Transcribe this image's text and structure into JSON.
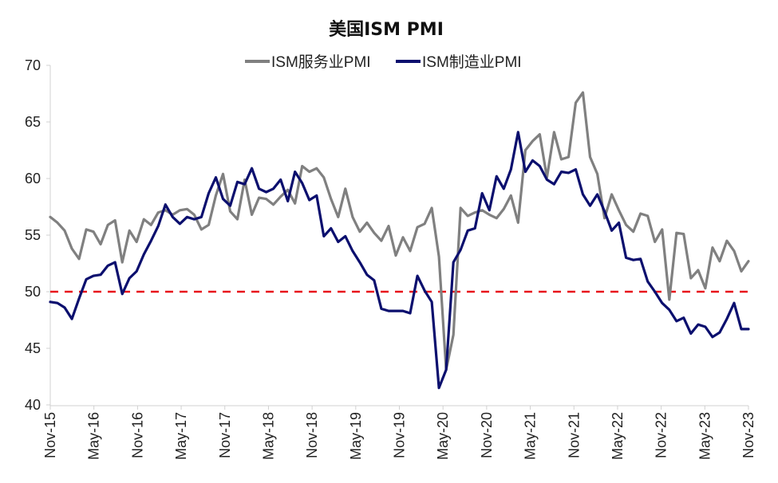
{
  "chart_data": {
    "type": "line",
    "title": "美国ISM PMI",
    "xlabel": "",
    "ylabel": "",
    "ylim": [
      40,
      70
    ],
    "yticks": [
      40,
      45,
      50,
      55,
      60,
      65,
      70
    ],
    "xtick_labels": [
      "Nov-15",
      "May-16",
      "Nov-16",
      "May-17",
      "Nov-17",
      "May-18",
      "Nov-18",
      "May-19",
      "Nov-19",
      "May-20",
      "Nov-20",
      "May-21",
      "Nov-21",
      "May-22",
      "Nov-22",
      "May-23",
      "Nov-23"
    ],
    "x_start": "Nov-15",
    "x_end": "Nov-23",
    "reference_line": {
      "value": 50,
      "style": "dashed",
      "color": "#e8151b"
    },
    "legend_position": "top-center",
    "series": [
      {
        "name": "ISM服务业PMI",
        "color": "#808080",
        "values": [
          56.6,
          56.1,
          55.4,
          53.8,
          52.9,
          55.5,
          55.3,
          54.2,
          55.9,
          56.3,
          52.6,
          55.4,
          54.4,
          56.4,
          55.9,
          57.0,
          57.2,
          56.8,
          57.2,
          57.3,
          56.8,
          55.5,
          55.9,
          58.5,
          60.4,
          57.1,
          56.4,
          59.9,
          56.8,
          58.3,
          58.2,
          57.7,
          58.4,
          59.0,
          57.8,
          61.1,
          60.6,
          60.9,
          60.1,
          58.2,
          56.6,
          59.1,
          56.6,
          55.3,
          56.1,
          55.2,
          54.5,
          55.8,
          53.2,
          54.8,
          53.6,
          55.7,
          56.0,
          57.4,
          53.1,
          43.1,
          46.2,
          57.4,
          56.7,
          57.0,
          57.2,
          56.8,
          56.5,
          57.3,
          58.5,
          56.1,
          62.5,
          63.3,
          63.9,
          60.1,
          64.1,
          61.7,
          61.9,
          66.7,
          67.6,
          61.9,
          60.4,
          56.5,
          58.6,
          57.2,
          55.9,
          55.3,
          56.9,
          56.7,
          54.4,
          55.5,
          49.3,
          55.2,
          55.1,
          51.2,
          51.9,
          50.3,
          53.9,
          52.7,
          54.5,
          53.6,
          51.8,
          52.7
        ]
      },
      {
        "name": "ISM制造业PMI",
        "color": "#0b0f6e",
        "values": [
          49.1,
          49.0,
          48.6,
          47.6,
          49.4,
          51.1,
          51.4,
          51.5,
          52.3,
          52.6,
          49.8,
          51.2,
          51.8,
          53.3,
          54.5,
          55.8,
          57.7,
          56.6,
          56.0,
          56.6,
          56.4,
          56.6,
          58.7,
          60.1,
          58.2,
          57.6,
          59.7,
          59.5,
          60.9,
          59.1,
          58.8,
          59.1,
          59.9,
          58.0,
          60.6,
          59.6,
          58.1,
          58.5,
          54.9,
          55.6,
          54.4,
          54.9,
          53.6,
          52.6,
          51.5,
          51.0,
          48.5,
          48.3,
          48.3,
          48.3,
          48.1,
          51.4,
          50.1,
          49.1,
          41.5,
          43.1,
          52.6,
          53.7,
          55.4,
          55.6,
          58.7,
          57.2,
          60.2,
          59.1,
          60.8,
          64.1,
          60.6,
          61.6,
          61.1,
          59.9,
          59.5,
          60.6,
          60.5,
          60.8,
          58.6,
          57.6,
          58.6,
          57.1,
          55.4,
          56.1,
          53.0,
          52.8,
          52.9,
          50.9,
          50.0,
          49.0,
          48.4,
          47.4,
          47.7,
          46.3,
          47.1,
          46.9,
          46.0,
          46.4,
          47.6,
          49.0,
          46.7,
          46.7
        ]
      }
    ]
  }
}
